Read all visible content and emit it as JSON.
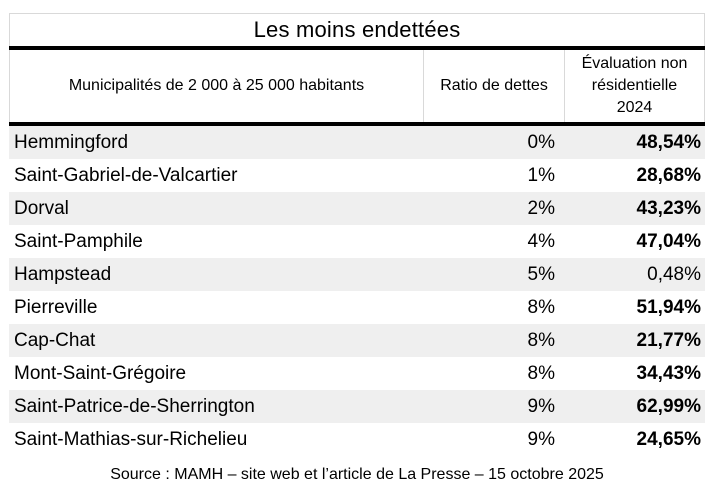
{
  "colors": {
    "stripe": "#efefef",
    "border_light": "#d9d9d9",
    "rule": "#000000",
    "text": "#000000",
    "background": "#ffffff"
  },
  "chart_data": {
    "type": "table",
    "title": "Les moins endettées",
    "columns": [
      "Municipalités de 2 000 à 25 000 habitants",
      "Ratio de dettes",
      "Évaluation non résidentielle 2024"
    ],
    "rows": [
      {
        "municipality": "Hemmingford",
        "ratio": "0%",
        "evaluation": "48,54%",
        "evaluation_bold": true
      },
      {
        "municipality": "Saint-Gabriel-de-Valcartier",
        "ratio": "1%",
        "evaluation": "28,68%",
        "evaluation_bold": true
      },
      {
        "municipality": "Dorval",
        "ratio": "2%",
        "evaluation": "43,23%",
        "evaluation_bold": true
      },
      {
        "municipality": "Saint-Pamphile",
        "ratio": "4%",
        "evaluation": "47,04%",
        "evaluation_bold": true
      },
      {
        "municipality": "Hampstead",
        "ratio": "5%",
        "evaluation": "0,48%",
        "evaluation_bold": false
      },
      {
        "municipality": "Pierreville",
        "ratio": "8%",
        "evaluation": "51,94%",
        "evaluation_bold": true
      },
      {
        "municipality": "Cap-Chat",
        "ratio": "8%",
        "evaluation": "21,77%",
        "evaluation_bold": true
      },
      {
        "municipality": "Mont-Saint-Grégoire",
        "ratio": "8%",
        "evaluation": "34,43%",
        "evaluation_bold": true
      },
      {
        "municipality": "Saint-Patrice-de-Sherrington",
        "ratio": "9%",
        "evaluation": "62,99%",
        "evaluation_bold": true
      },
      {
        "municipality": "Saint-Mathias-sur-Richelieu",
        "ratio": "9%",
        "evaluation": "24,65%",
        "evaluation_bold": true
      }
    ],
    "source_note": "Source : MAMH – site web et l’article de La Presse – 15 octobre 2025",
    "layout": {
      "stripe_rows": "odd",
      "evaluation_column_bold": true,
      "ratio_alignment": "right",
      "evaluation_alignment": "right"
    }
  }
}
